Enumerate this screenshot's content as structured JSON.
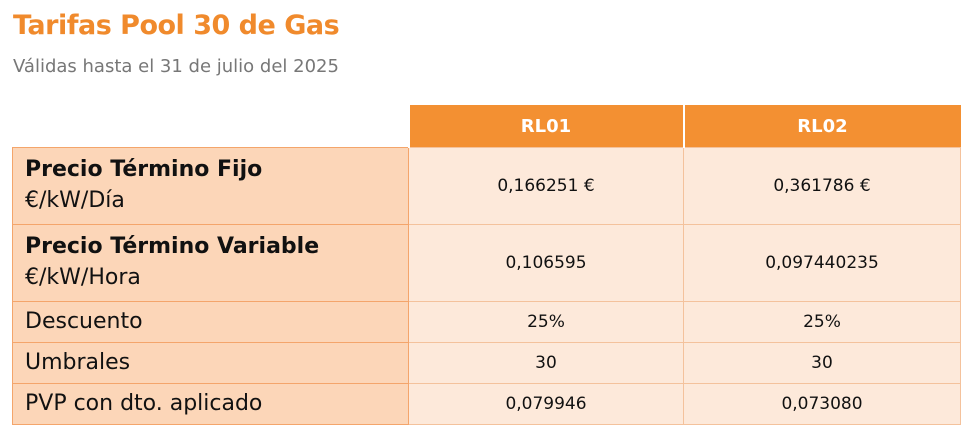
{
  "header": {
    "title": "Tarifas Pool 30 de Gas",
    "subtitle": "Válidas hasta el 31 de julio del 2025"
  },
  "table": {
    "columns": [
      "RL01",
      "RL02"
    ],
    "rows": [
      {
        "label": "Precio Término Fijo",
        "unit": "€/kW/Día",
        "values": [
          "0,166251 €",
          "0,361786 €"
        ]
      },
      {
        "label": "Precio Término Variable",
        "unit": "€/kW/Hora",
        "values": [
          "0,106595",
          "0,097440235"
        ]
      },
      {
        "label": "Descuento",
        "values": [
          "25%",
          "25%"
        ]
      },
      {
        "label": "Umbrales",
        "values": [
          "30",
          "30"
        ]
      },
      {
        "label": "PVP con dto. aplicado",
        "values": [
          "0,079946",
          "0,073080"
        ]
      }
    ]
  }
}
